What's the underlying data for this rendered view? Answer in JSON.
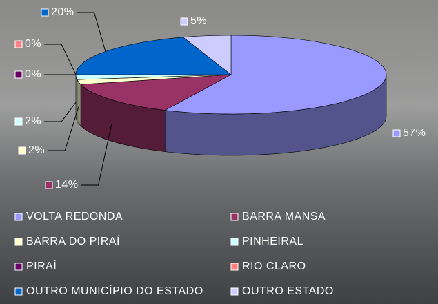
{
  "chart_data": {
    "type": "pie",
    "categories": [
      "VOLTA REDONDA",
      "BARRA MANSA",
      "BARRA DO PIRAÍ",
      "PINHEIRAL",
      "PIRAÍ",
      "RIO CLARO",
      "OUTRO MUNICÍPIO DO ESTADO",
      "OUTRO ESTADO"
    ],
    "values": [
      57,
      14,
      2,
      2,
      0,
      0,
      20,
      5
    ],
    "value_labels": [
      "57%",
      "14%",
      "2%",
      "2%",
      "0%",
      "0%",
      "20%",
      "5%"
    ],
    "colors": [
      "#9999ff",
      "#993366",
      "#ffffcc",
      "#ccffff",
      "#660066",
      "#ff8080",
      "#0066cc",
      "#ccccff"
    ],
    "legend": "bottom"
  }
}
